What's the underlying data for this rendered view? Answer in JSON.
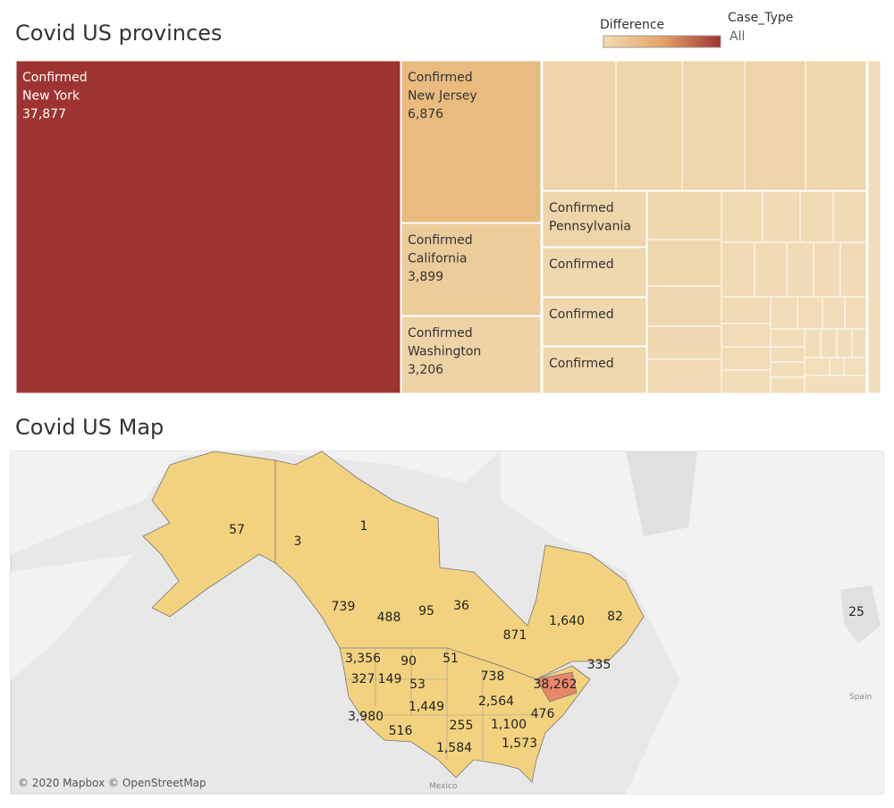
{
  "chart_data": [
    {
      "type": "treemap",
      "title": "Covid US provinces",
      "legend_title": "Difference",
      "filter_title": "Case_Type",
      "filter_value": "All",
      "case_types": [
        "Confirmed",
        "Confirmed",
        "Confirmed",
        "Confirmed",
        "Confirmed",
        "Confirmed",
        "Confirmed",
        "Confirmed"
      ],
      "categories": [
        "New York",
        "New Jersey",
        "California",
        "Washington",
        "Pennsylvania",
        null,
        null,
        null
      ],
      "values": [
        37877,
        6876,
        3899,
        3206,
        1750,
        1500,
        1500,
        1450
      ],
      "value_labels": [
        "37,877",
        "6,876",
        "3,899",
        "3,206",
        null,
        null,
        null,
        null
      ],
      "colors": [
        "#9e3431",
        "#e9bb7f",
        "#ebcc9a",
        "#eed3a6",
        "#eed5aa",
        "#efd7ae",
        "#efd7ae",
        "#efd7ae"
      ]
    },
    {
      "type": "map",
      "title": "Covid US Map",
      "attribution": "© 2020 Mapbox © OpenStreetMap",
      "place_labels": [
        "Mexico",
        "Spain"
      ],
      "values": [
        57,
        3,
        1,
        739,
        488,
        95,
        36,
        871,
        1640,
        82,
        3356,
        90,
        51,
        327,
        149,
        53,
        738,
        38262,
        335,
        1449,
        2564,
        3980,
        255,
        476,
        1100,
        516,
        1584,
        1573,
        25
      ],
      "value_labels": [
        "57",
        "3",
        "1",
        "739",
        "488",
        "95",
        "36",
        "871",
        "1,640",
        "82",
        "3,356",
        "90",
        "51",
        "327",
        "149",
        "53",
        "738",
        "38,262",
        "335",
        "1,449",
        "2,564",
        "3,980",
        "255",
        "476",
        "1,100",
        "516",
        "1,584",
        "1,573",
        "25"
      ],
      "color": "#f2d27e",
      "highlight_color": "#e8876a"
    }
  ]
}
